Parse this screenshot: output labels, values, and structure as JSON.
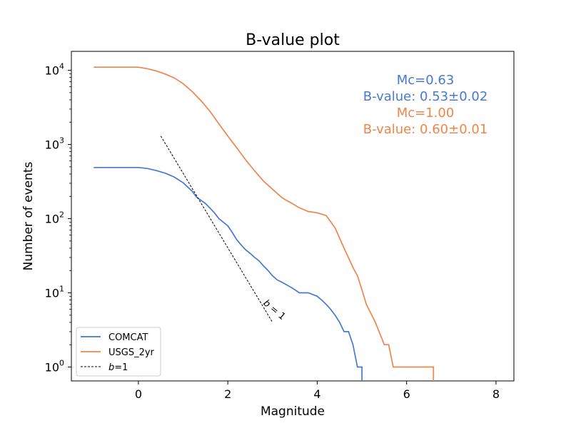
{
  "chart_data": {
    "type": "line",
    "title": "B-value plot",
    "xlabel": "Magnitude",
    "ylabel": "Number of events",
    "xlim": [
      -1.5,
      8.4
    ],
    "ylim": [
      0.65,
      18000
    ],
    "yscale": "log",
    "grid": false,
    "legend_placement": "lower-left",
    "x_ticks": [
      0,
      2,
      4,
      6,
      8
    ],
    "x_tick_labels": [
      "0",
      "2",
      "4",
      "6",
      "8"
    ],
    "y_ticks": [
      1,
      10,
      100,
      1000,
      10000
    ],
    "y_tick_bases": [
      "10",
      "10",
      "10",
      "10",
      "10"
    ],
    "y_tick_exponents": [
      "0",
      "1",
      "2",
      "3",
      "4"
    ],
    "series": [
      {
        "name": "COMCAT",
        "color": "#4878cf",
        "style": "solid",
        "x": [
          -1.0,
          -0.5,
          0.0,
          0.2,
          0.4,
          0.6,
          0.8,
          1.0,
          1.2,
          1.3,
          1.5,
          1.7,
          1.8,
          2.0,
          2.1,
          2.2,
          2.3,
          2.4,
          2.5,
          2.6,
          2.7,
          2.8,
          2.9,
          3.0,
          3.1,
          3.2,
          3.4,
          3.5,
          3.6,
          3.8,
          4.0,
          4.1,
          4.2,
          4.3,
          4.4,
          4.5,
          4.6,
          4.7,
          4.8,
          4.9,
          4.95,
          5.0,
          5.0
        ],
        "y": [
          490,
          490,
          490,
          475,
          445,
          410,
          365,
          305,
          235,
          195,
          160,
          120,
          100,
          80,
          65,
          52,
          44,
          38,
          34,
          30,
          27,
          23,
          20,
          17,
          15,
          14,
          12,
          11,
          10,
          10,
          9,
          8,
          7,
          6,
          5,
          4,
          3,
          3,
          2,
          1,
          1,
          1,
          0.65
        ]
      },
      {
        "name": "USGS_2yr",
        "color": "#ee854a",
        "style": "solid",
        "x": [
          -1.0,
          -0.5,
          0.0,
          0.2,
          0.4,
          0.6,
          0.8,
          1.0,
          1.2,
          1.4,
          1.6,
          1.8,
          2.0,
          2.2,
          2.4,
          2.6,
          2.8,
          3.0,
          3.2,
          3.3,
          3.4,
          3.6,
          3.8,
          4.0,
          4.2,
          4.4,
          4.6,
          4.8,
          4.9,
          5.0,
          5.1,
          5.3,
          5.5,
          5.6,
          5.7,
          5.75,
          5.8,
          6.0,
          6.6,
          6.6
        ],
        "y": [
          11000,
          11000,
          11000,
          10500,
          9800,
          8900,
          7900,
          6600,
          5200,
          3900,
          2800,
          1900,
          1300,
          900,
          620,
          440,
          320,
          250,
          195,
          178,
          165,
          140,
          125,
          120,
          110,
          75,
          40,
          22,
          17,
          11,
          7,
          4,
          2,
          2,
          1,
          1,
          1,
          1,
          1,
          0.65
        ]
      },
      {
        "name": "b=1",
        "name_prefix": "b",
        "name_suffix": "=1",
        "color": "#000000",
        "style": "dashed",
        "x": [
          0.5,
          3.0
        ],
        "y": [
          1300,
          4.0
        ]
      }
    ],
    "annotations": [
      {
        "text": "Mc=0.63",
        "color": "#4878cf"
      },
      {
        "text": "B-value: 0.53±0.02",
        "color": "#4878cf"
      },
      {
        "text": "Mc=1.00",
        "color": "#ee854a"
      },
      {
        "text": "B-value: 0.60±0.01",
        "color": "#ee854a"
      }
    ],
    "line_label": {
      "prefix": "b",
      "suffix": " = 1",
      "x": 3.0,
      "y": 5.5
    }
  }
}
